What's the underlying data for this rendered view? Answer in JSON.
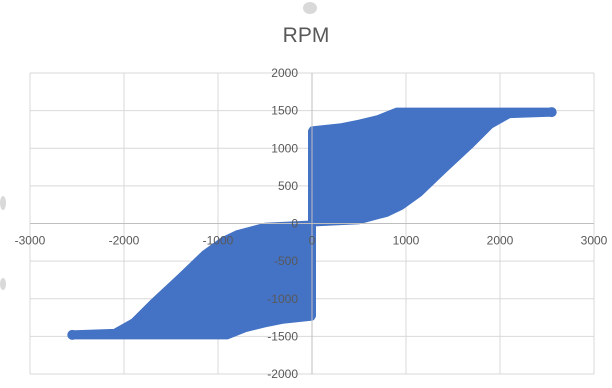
{
  "chart_data": {
    "type": "scatter",
    "title": "RPM",
    "xlabel": "",
    "ylabel": "",
    "xlim": [
      -3000,
      3000
    ],
    "ylim": [
      -2000,
      2000
    ],
    "xticks": [
      -3000,
      -2000,
      -1000,
      0,
      1000,
      2000,
      3000
    ],
    "yticks": [
      -2000,
      -1500,
      -1000,
      -500,
      0,
      500,
      1000,
      1500,
      2000
    ],
    "grid": true,
    "legend": "none",
    "series_color": "#4472c4",
    "series": [
      {
        "upper_band": [
          [
            0,
            1250
          ],
          [
            300,
            1290
          ],
          [
            500,
            1340
          ],
          [
            700,
            1400
          ],
          [
            900,
            1500
          ],
          [
            2550,
            1500
          ],
          [
            2560,
            1460
          ],
          [
            2100,
            1440
          ],
          [
            1900,
            1300
          ],
          [
            1700,
            1050
          ],
          [
            1400,
            700
          ],
          [
            1150,
            400
          ],
          [
            950,
            220
          ],
          [
            800,
            130
          ],
          [
            500,
            30
          ],
          [
            0,
            0
          ]
        ],
        "lower_band": [
          [
            0,
            -1250
          ],
          [
            -300,
            -1290
          ],
          [
            -500,
            -1340
          ],
          [
            -700,
            -1400
          ],
          [
            -900,
            -1500
          ],
          [
            -2550,
            -1500
          ],
          [
            -2560,
            -1460
          ],
          [
            -2100,
            -1440
          ],
          [
            -1900,
            -1300
          ],
          [
            -1700,
            -1050
          ],
          [
            -1400,
            -700
          ],
          [
            -1150,
            -400
          ],
          [
            -950,
            -220
          ],
          [
            -800,
            -130
          ],
          [
            -500,
            -30
          ],
          [
            0,
            0
          ]
        ]
      }
    ]
  }
}
